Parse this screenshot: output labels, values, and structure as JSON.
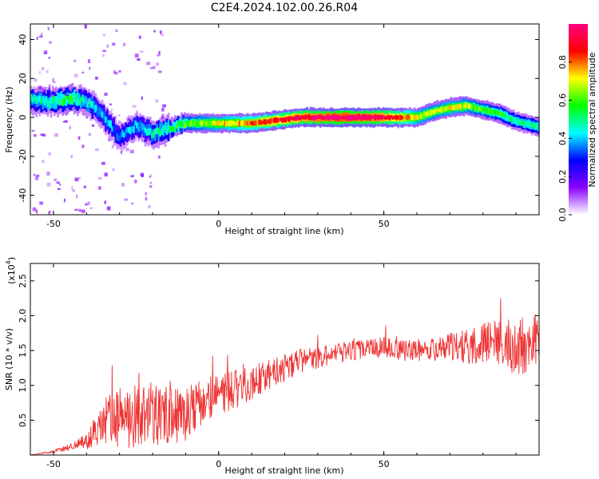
{
  "title": "C2E4.2024.102.00.26.R04",
  "chart_data": [
    {
      "type": "heatmap",
      "xlabel": "Height of straight line (km)",
      "ylabel": "Frequency (Hz)",
      "xlim": [
        -57,
        97
      ],
      "ylim": [
        -50,
        48
      ],
      "xticks": [
        -50,
        0,
        50
      ],
      "yticks": [
        -40,
        -20,
        0,
        20,
        40
      ],
      "colorbar": {
        "label": "Normalized spectral amplitude",
        "range": [
          0.0,
          1.0
        ],
        "ticks": [
          0.0,
          0.2,
          0.4,
          0.6,
          0.8
        ],
        "tick_labels": [
          "0.0",
          "0.2",
          "0.4",
          "0.6",
          "0.8"
        ],
        "colormap": [
          "#ffffff",
          "#8800ff",
          "#0000ff",
          "#00ffff",
          "#00ff00",
          "#ffff00",
          "#ff0000",
          "#ff0080"
        ]
      },
      "ridge": {
        "x": [
          -57,
          -50,
          -45,
          -40,
          -35,
          -30,
          -25,
          -20,
          -15,
          -10,
          -5,
          0,
          5,
          10,
          15,
          20,
          25,
          30,
          35,
          40,
          45,
          50,
          55,
          60,
          65,
          70,
          75,
          80,
          85,
          90,
          95,
          97
        ],
        "frequency": [
          9,
          8,
          10,
          8,
          1,
          -10,
          -4,
          -8,
          -6,
          -3,
          -3,
          -3,
          -3,
          -3,
          -2,
          -1,
          0,
          0,
          0,
          0,
          0,
          0,
          0,
          0,
          3,
          5,
          6,
          4,
          2,
          -2,
          -4,
          -5
        ],
        "amplitude": [
          0.45,
          0.5,
          0.55,
          0.45,
          0.4,
          0.35,
          0.4,
          0.45,
          0.5,
          0.6,
          0.65,
          0.7,
          0.75,
          0.8,
          0.85,
          0.9,
          0.95,
          0.98,
          1.0,
          1.0,
          0.98,
          0.95,
          0.85,
          0.7,
          0.65,
          0.7,
          0.65,
          0.6,
          0.55,
          0.5,
          0.5,
          0.5
        ]
      }
    },
    {
      "type": "line",
      "xlabel": "Height of straight line (km)",
      "ylabel": "SNR (10 * v/v)",
      "y_multiplier": "(x10",
      "y_multiplier_exp": "4",
      "y_multiplier_close": ")",
      "xlim": [
        -57,
        97
      ],
      "ylim": [
        0,
        2.75
      ],
      "xticks": [
        -50,
        0,
        50
      ],
      "yticks": [
        0.5,
        1.0,
        1.5,
        2.0,
        2.5
      ],
      "ytick_labels": [
        "0.5",
        "1.0",
        "1.5",
        "2.0",
        "2.5"
      ],
      "color": "#ee3333",
      "series": [
        {
          "x": [
            -57,
            -50,
            -45,
            -40,
            -35,
            -30,
            -25,
            -20,
            -15,
            -10,
            -5,
            0,
            5,
            10,
            15,
            20,
            25,
            30,
            35,
            40,
            45,
            50,
            55,
            60,
            65,
            70,
            75,
            80,
            85,
            90,
            95,
            97
          ],
          "mean": [
            0.0,
            0.05,
            0.12,
            0.2,
            0.45,
            0.55,
            0.55,
            0.55,
            0.55,
            0.6,
            0.75,
            0.85,
            0.95,
            1.05,
            1.15,
            1.25,
            1.35,
            1.4,
            1.45,
            1.5,
            1.55,
            1.55,
            1.5,
            1.5,
            1.52,
            1.55,
            1.55,
            1.6,
            1.6,
            1.55,
            1.6,
            1.6
          ],
          "spread": [
            0.0,
            0.02,
            0.06,
            0.12,
            0.35,
            0.45,
            0.45,
            0.45,
            0.45,
            0.4,
            0.35,
            0.3,
            0.3,
            0.25,
            0.22,
            0.2,
            0.18,
            0.16,
            0.15,
            0.15,
            0.15,
            0.15,
            0.15,
            0.16,
            0.18,
            0.2,
            0.25,
            0.3,
            0.35,
            0.4,
            0.45,
            0.45
          ]
        }
      ]
    }
  ]
}
